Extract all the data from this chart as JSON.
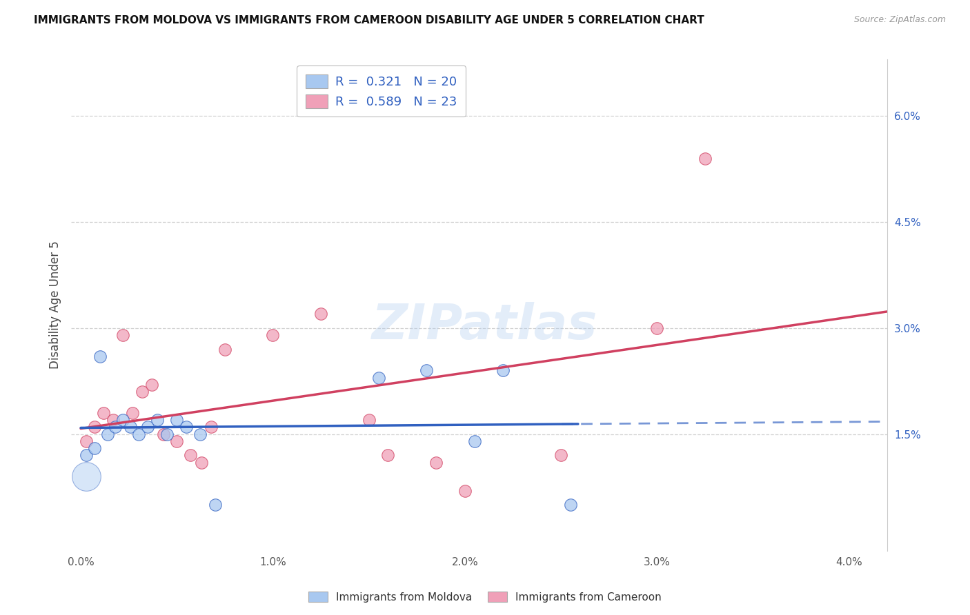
{
  "title": "IMMIGRANTS FROM MOLDOVA VS IMMIGRANTS FROM CAMEROON DISABILITY AGE UNDER 5 CORRELATION CHART",
  "source": "Source: ZipAtlas.com",
  "ylabel": "Disability Age Under 5",
  "xlim": [
    -0.05,
    4.2
  ],
  "ylim": [
    -0.15,
    6.8
  ],
  "ytick_vals": [
    1.5,
    3.0,
    4.5,
    6.0
  ],
  "xtick_vals": [
    0.0,
    1.0,
    2.0,
    3.0,
    4.0
  ],
  "legend_moldova_R": "0.321",
  "legend_moldova_N": "20",
  "legend_cameroon_R": "0.589",
  "legend_cameroon_N": "23",
  "color_moldova_fill": "#A8C8F0",
  "color_cameroon_fill": "#F0A0B8",
  "color_moldova_line": "#3060C0",
  "color_cameroon_line": "#D04060",
  "background_color": "#FFFFFF",
  "grid_color": "#CCCCCC",
  "watermark": "ZIPatlas",
  "moldova_x": [
    0.03,
    0.07,
    0.1,
    0.14,
    0.18,
    0.22,
    0.26,
    0.3,
    0.35,
    0.4,
    0.45,
    0.5,
    0.55,
    0.62,
    0.7,
    1.55,
    1.8,
    2.05,
    2.2,
    2.55
  ],
  "moldova_y": [
    1.2,
    1.3,
    2.6,
    1.5,
    1.6,
    1.7,
    1.6,
    1.5,
    1.6,
    1.7,
    1.5,
    1.7,
    1.6,
    1.5,
    0.5,
    2.3,
    2.4,
    1.4,
    2.4,
    0.5
  ],
  "moldova_big_x": 0.03,
  "moldova_big_y": 0.9,
  "cameroon_x": [
    0.03,
    0.07,
    0.12,
    0.17,
    0.22,
    0.27,
    0.32,
    0.37,
    0.43,
    0.5,
    0.57,
    0.63,
    0.68,
    0.75,
    1.0,
    1.25,
    1.5,
    1.6,
    1.85,
    2.0,
    2.5,
    3.0,
    3.25
  ],
  "cameroon_y": [
    1.4,
    1.6,
    1.8,
    1.7,
    2.9,
    1.8,
    2.1,
    2.2,
    1.5,
    1.4,
    1.2,
    1.1,
    1.6,
    2.7,
    2.9,
    3.2,
    1.7,
    1.2,
    1.1,
    0.7,
    1.2,
    3.0,
    5.4
  ],
  "moldova_solid_xmax": 2.55,
  "line_xmax": 4.2
}
